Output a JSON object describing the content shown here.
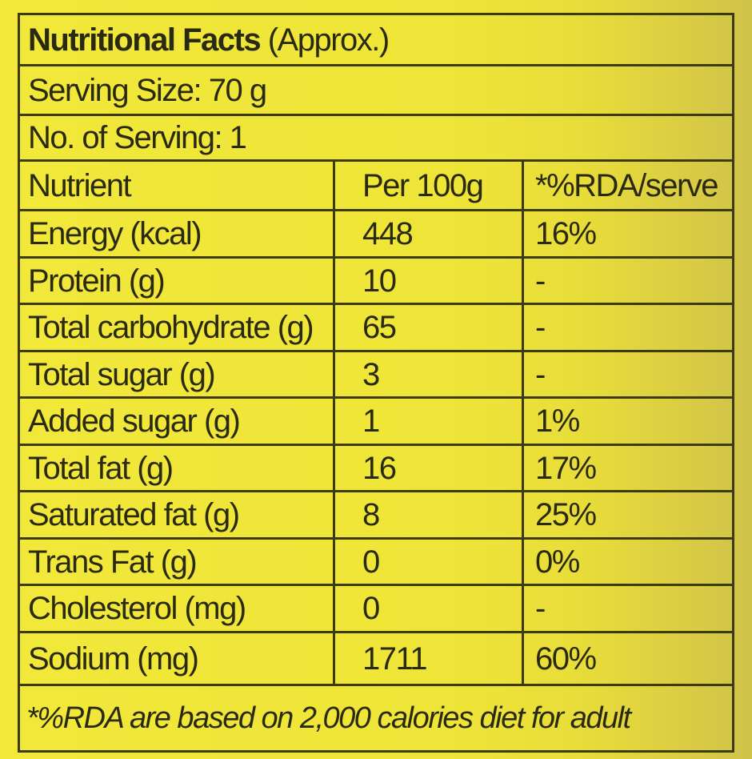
{
  "title": {
    "bold": "Nutritional Facts",
    "rest": " (Approx.)"
  },
  "serving_size": "Serving Size: 70 g",
  "servings": "No. of Serving: 1",
  "headers": [
    "Nutrient",
    "Per 100g",
    "*%RDA/serve"
  ],
  "rows": [
    {
      "nutrient": "Energy (kcal)",
      "per100": "448",
      "rda": "16%"
    },
    {
      "nutrient": "Protein (g)",
      "per100": "10",
      "rda": "-"
    },
    {
      "nutrient": "Total carbohydrate (g)",
      "per100": "65",
      "rda": "-"
    },
    {
      "nutrient": "Total sugar (g)",
      "per100": "3",
      "rda": "-"
    },
    {
      "nutrient": "Added sugar (g)",
      "per100": "1",
      "rda": "1%"
    },
    {
      "nutrient": "Total fat (g)",
      "per100": "16",
      "rda": "17%"
    },
    {
      "nutrient": "Saturated fat (g)",
      "per100": "8",
      "rda": "25%"
    },
    {
      "nutrient": "Trans Fat (g)",
      "per100": "0",
      "rda": "0%"
    },
    {
      "nutrient": "Cholesterol (mg)",
      "per100": "0",
      "rda": "-"
    },
    {
      "nutrient": "Sodium (mg)",
      "per100": "1711",
      "rda": "60%"
    }
  ],
  "footnote": "*%RDA are based on 2,000 calories diet for adult",
  "colors": {
    "background": "#f0e638",
    "border": "#3d3a16",
    "text": "#2a2a12"
  }
}
